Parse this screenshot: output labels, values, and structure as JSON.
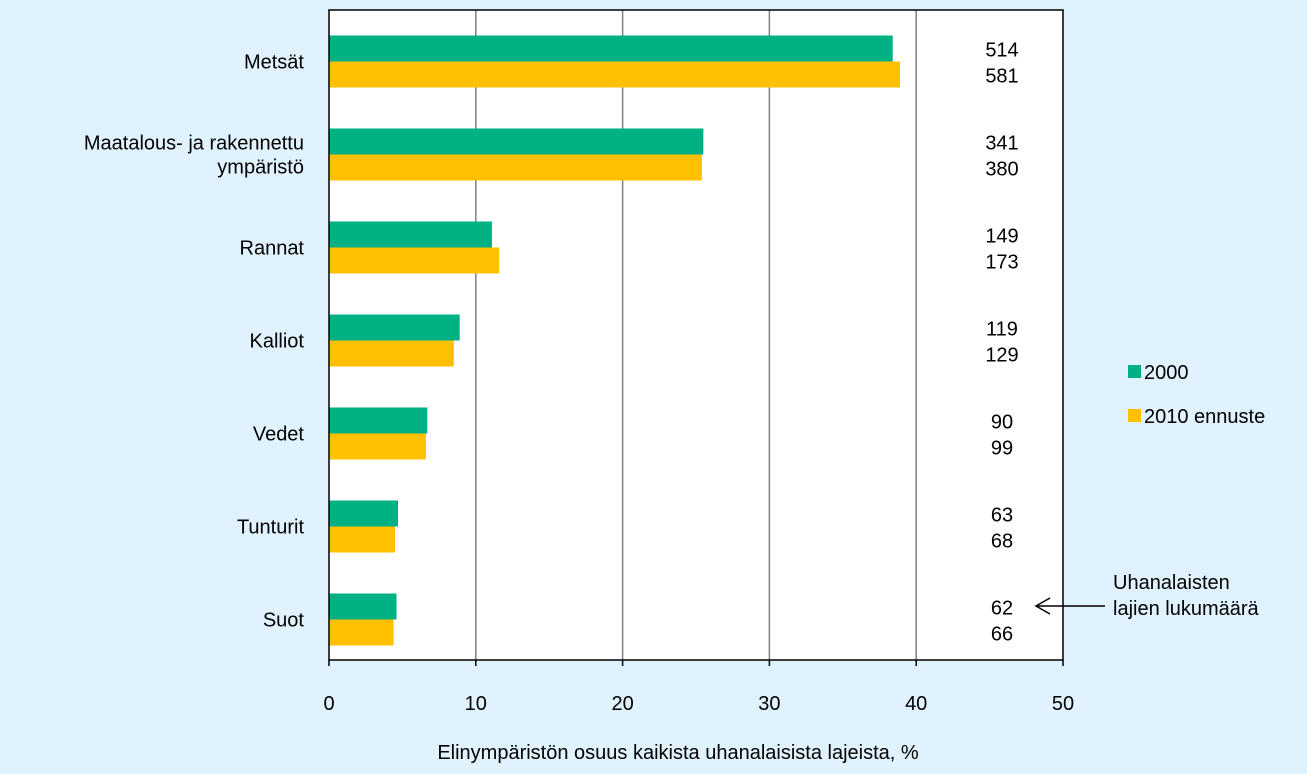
{
  "chart_data": {
    "type": "bar",
    "orientation": "horizontal",
    "categories": [
      [
        "Metsät"
      ],
      [
        "Maatalous- ja rakennettu",
        "ympäristö"
      ],
      [
        "Rannat"
      ],
      [
        "Kalliot"
      ],
      [
        "Vedet"
      ],
      [
        "Tunturit"
      ],
      [
        "Suot"
      ]
    ],
    "series": [
      {
        "name": "2000",
        "color": "#00b183",
        "values": [
          38.4,
          25.5,
          11.1,
          8.9,
          6.7,
          4.7,
          4.6
        ],
        "counts": [
          "514",
          "341",
          "149",
          "119",
          "90",
          "63",
          "62"
        ]
      },
      {
        "name": "2010 ennuste",
        "color": "#ffc000",
        "values": [
          38.9,
          25.4,
          11.6,
          8.5,
          6.6,
          4.5,
          4.4
        ],
        "counts": [
          "581",
          "380",
          "173",
          "129",
          "99",
          "68",
          "66"
        ]
      }
    ],
    "xlabel": "Elinympäristön osuus kaikista uhanalaisista lajeista, %",
    "xlim": [
      0,
      50
    ],
    "xticks": [
      "0",
      "10",
      "20",
      "30",
      "40",
      "50"
    ],
    "grid": true,
    "legend_position": "right",
    "annotation": [
      "Uhanalaisten",
      "lajien lukumäärä"
    ]
  }
}
